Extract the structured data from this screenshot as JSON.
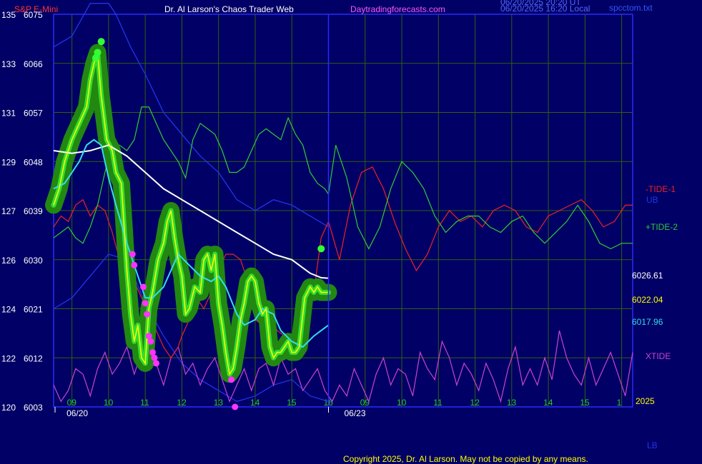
{
  "header": {
    "symbol": "S&P E-Mini",
    "title": "Dr. Al Larson's Chaos Trader Web",
    "site": "Daytradingforecasts.com",
    "stamp1": "06/20/2025 20:20 UT",
    "stamp2": "06/20/2025 16:20 Local",
    "filename": "spcctom.txt"
  },
  "colors": {
    "background": "#000066",
    "frame": "#2a2aff",
    "grid": "#33600a",
    "symbol": "#ff3333",
    "title": "#ffffff",
    "site": "#ff55ff",
    "price": "#ffff00",
    "ma_slow": "#ffffff",
    "ma_fast": "#33ddee",
    "tide1": "#ee2222",
    "tide2": "#33cc33",
    "xtide": "#cc44cc",
    "band": "#2233ee",
    "halo": "#228811",
    "pivot": "#ff33ff"
  },
  "right_labels": {
    "tide1": "-TIDE-1",
    "ub": "UB",
    "tide2": "+TIDE-2",
    "v1": "6026.61",
    "v2": "6022.04",
    "v3": "6017.96",
    "xtide": "XTIDE",
    "year": "2025",
    "lb": "LB"
  },
  "footer": {
    "copyright": "Copyright 2025, Dr. Al Larson. May not be copied by any means."
  },
  "chart_data": {
    "type": "line",
    "title": "Dr. Al Larson's Chaos Trader Web",
    "y_left_labels": [
      {
        "a": "135",
        "b": "6075"
      },
      {
        "a": "133",
        "b": "6066"
      },
      {
        "a": "131",
        "b": "6057"
      },
      {
        "a": "129",
        "b": "6048"
      },
      {
        "a": "127",
        "b": "6039"
      },
      {
        "a": "126",
        "b": "6030"
      },
      {
        "a": "124",
        "b": "6021"
      },
      {
        "a": "122",
        "b": "6012"
      },
      {
        "a": "120",
        "b": "6003"
      }
    ],
    "ylim": [
      6003,
      6075
    ],
    "x_tick_labels": [
      "09",
      "10",
      "11",
      "12",
      "13",
      "14",
      "15",
      "16",
      "09",
      "10",
      "11",
      "12",
      "13",
      "14",
      "15",
      "1"
    ],
    "x_date_labels": [
      "06/20",
      "06/23"
    ],
    "x_domain": [
      8.5,
      24.3
    ],
    "now_line_hour": 16.0,
    "series": [
      {
        "name": "price",
        "x": [
          8.5,
          8.65,
          8.8,
          9.0,
          9.2,
          9.4,
          9.5,
          9.6,
          9.7,
          9.8,
          9.95,
          10.1,
          10.2,
          10.35,
          10.5,
          10.6,
          10.7,
          10.8,
          10.9,
          11.0,
          11.1,
          11.2,
          11.35,
          11.5,
          11.6,
          11.7,
          11.8,
          11.9,
          12.0,
          12.1,
          12.2,
          12.35,
          12.5,
          12.6,
          12.7,
          12.8,
          12.9,
          13.0,
          13.1,
          13.2,
          13.3,
          13.4,
          13.5,
          13.6,
          13.7,
          13.8,
          13.9,
          14.0,
          14.1,
          14.2,
          14.3,
          14.4,
          14.5,
          14.6,
          14.7,
          14.8,
          14.9,
          15.0,
          15.1,
          15.2,
          15.35,
          15.5,
          15.6,
          15.7,
          15.8,
          15.9,
          16.0
        ],
        "y": [
          6040,
          6043,
          6048,
          6052,
          6055,
          6058,
          6063,
          6066,
          6068,
          6060,
          6052,
          6050,
          6046,
          6044,
          6028,
          6020,
          6015,
          6018,
          6012,
          6011,
          6021,
          6024,
          6030,
          6033,
          6037,
          6039,
          6034,
          6030,
          6027,
          6020,
          6021,
          6025,
          6024,
          6030,
          6031,
          6028,
          6031,
          6022,
          6018,
          6013,
          6009,
          6010,
          6014,
          6019,
          6022,
          6026,
          6027,
          6026,
          6022,
          6020,
          6021,
          6014,
          6012,
          6013,
          6013,
          6014,
          6015,
          6013,
          6013,
          6014,
          6023,
          6025,
          6024,
          6025,
          6024,
          6024,
          6024
        ]
      },
      {
        "name": "ma_fast",
        "x": [
          8.5,
          8.8,
          9.2,
          9.4,
          9.6,
          9.8,
          10.0,
          10.2,
          10.5,
          10.8,
          11.0,
          11.2,
          11.5,
          11.7,
          11.9,
          12.2,
          12.5,
          12.8,
          13.0,
          13.2,
          13.5,
          13.7,
          14.0,
          14.2,
          14.5,
          14.7,
          15.0,
          15.3,
          15.6,
          15.8,
          16.0
        ],
        "y": [
          6043,
          6044,
          6048,
          6051,
          6052,
          6051,
          6045,
          6040,
          6033,
          6027,
          6023,
          6023,
          6025,
          6028,
          6031,
          6029,
          6027,
          6026,
          6027,
          6025,
          6020,
          6018,
          6019,
          6021,
          6020,
          6017,
          6015,
          6014,
          6016,
          6017,
          6018
        ]
      },
      {
        "name": "ma_slow",
        "x": [
          8.5,
          9.0,
          9.5,
          10.0,
          10.5,
          11.0,
          11.5,
          12.0,
          12.5,
          13.0,
          13.5,
          14.0,
          14.5,
          15.0,
          15.5,
          15.8,
          16.0
        ],
        "y": [
          6050,
          6049.5,
          6050,
          6051,
          6049,
          6046,
          6043,
          6041,
          6039,
          6037,
          6035,
          6033,
          6031,
          6030,
          6027.5,
          6026.7,
          6026.6
        ]
      },
      {
        "name": "tide1",
        "x": [
          8.5,
          8.7,
          8.9,
          9.1,
          9.3,
          9.5,
          9.7,
          9.9,
          10.1,
          10.3,
          10.5,
          10.7,
          10.9,
          11.1,
          11.3,
          11.5,
          11.7,
          11.9,
          12.0,
          12.2,
          12.4,
          12.6,
          12.8,
          13.0,
          13.2,
          13.4,
          13.6,
          13.8,
          14.0,
          14.2,
          14.4,
          14.6,
          14.8,
          15.0,
          15.2,
          15.4,
          15.6,
          15.8,
          16.0,
          16.3,
          16.6,
          16.9,
          17.2,
          17.5,
          17.8,
          18.1,
          18.4,
          18.7,
          19.0,
          19.3,
          19.6,
          19.9,
          20.2,
          20.5,
          20.8,
          21.1,
          21.4,
          21.7,
          22.0,
          22.3,
          22.6,
          22.9,
          23.2,
          23.5,
          23.8,
          24.1,
          24.3
        ],
        "y": [
          6036,
          6038,
          6037,
          6040,
          6041,
          6038,
          6040,
          6039,
          6035,
          6030,
          6028,
          6026,
          6023,
          6021,
          6017,
          6014,
          6012,
          6014,
          6016,
          6019,
          6023,
          6021,
          6024,
          6028,
          6031,
          6031,
          6030,
          6026,
          6019,
          6018,
          6020,
          6017,
          6016,
          6015,
          6016,
          6018,
          6024,
          6034,
          6037,
          6030,
          6040,
          6046,
          6047,
          6043,
          6037,
          6032,
          6028,
          6031,
          6036,
          6039,
          6037,
          6038,
          6036,
          6039,
          6040,
          6039,
          6036,
          6035,
          6038,
          6039,
          6040,
          6041,
          6039,
          6036,
          6037,
          6040,
          6040
        ]
      },
      {
        "name": "tide2",
        "x": [
          8.5,
          8.7,
          8.9,
          9.1,
          9.3,
          9.5,
          9.7,
          9.9,
          10.1,
          10.3,
          10.5,
          10.7,
          10.9,
          11.1,
          11.3,
          11.5,
          11.7,
          11.9,
          12.1,
          12.3,
          12.5,
          12.7,
          12.9,
          13.1,
          13.3,
          13.5,
          13.7,
          13.9,
          14.1,
          14.3,
          14.5,
          14.7,
          14.9,
          15.1,
          15.3,
          15.5,
          15.7,
          15.9,
          16.0,
          16.2,
          16.5,
          16.8,
          17.1,
          17.4,
          17.7,
          18.0,
          18.3,
          18.6,
          18.9,
          19.2,
          19.5,
          19.8,
          20.1,
          20.4,
          20.7,
          21.0,
          21.3,
          21.6,
          21.9,
          22.2,
          22.5,
          22.8,
          23.1,
          23.4,
          23.7,
          24.0,
          24.3
        ],
        "y": [
          6034,
          6035,
          6036,
          6034,
          6033,
          6036,
          6040,
          6046,
          6051,
          6051,
          6050,
          6052,
          6058,
          6058,
          6055,
          6052,
          6050,
          6048,
          6045,
          6052,
          6055,
          6054,
          6053,
          6050,
          6046,
          6046,
          6047,
          6050,
          6053,
          6054,
          6053,
          6052,
          6056,
          6053,
          6051,
          6046,
          6044,
          6043,
          6042,
          6051,
          6045,
          6036,
          6032,
          6036,
          6043,
          6048,
          6046,
          6043,
          6038,
          6035,
          6037,
          6038,
          6038,
          6036,
          6035,
          6037,
          6038,
          6035,
          6033,
          6035,
          6037,
          6040,
          6037,
          6033,
          6032,
          6033,
          6033
        ]
      },
      {
        "name": "xtide",
        "x": [
          8.5,
          8.7,
          8.9,
          9.1,
          9.3,
          9.5,
          9.7,
          9.9,
          10.1,
          10.3,
          10.5,
          10.7,
          10.9,
          11.1,
          11.3,
          11.5,
          11.7,
          11.9,
          12.1,
          12.3,
          12.5,
          12.7,
          12.9,
          13.1,
          13.3,
          13.5,
          13.7,
          13.9,
          14.1,
          14.3,
          14.5,
          14.7,
          14.9,
          15.1,
          15.3,
          15.5,
          15.7,
          15.9,
          16.1,
          16.3,
          16.5,
          16.7,
          16.9,
          17.1,
          17.3,
          17.5,
          17.7,
          17.9,
          18.1,
          18.3,
          18.5,
          18.7,
          18.9,
          19.1,
          19.3,
          19.5,
          19.7,
          19.9,
          20.1,
          20.3,
          20.5,
          20.7,
          20.9,
          21.1,
          21.3,
          21.5,
          21.7,
          21.9,
          22.1,
          22.3,
          22.5,
          22.7,
          22.9,
          23.1,
          23.3,
          23.5,
          23.7,
          23.9,
          24.1,
          24.3
        ],
        "y": [
          6007,
          6004,
          6006,
          6010,
          6009,
          6005,
          6010,
          6013,
          6009,
          6011,
          6014,
          6009,
          6013,
          6010,
          6011,
          6007,
          6012,
          6014,
          6009,
          6011,
          6007,
          6010,
          6012,
          6008,
          6004,
          6007,
          6010,
          6006,
          6010,
          6011,
          6007,
          6012,
          6009,
          6010,
          6006,
          6008,
          6010,
          6006,
          6004,
          6007,
          6005,
          6010,
          6007,
          6004,
          6009,
          6012,
          6007,
          6010,
          6009,
          6005,
          6013,
          6010,
          6008,
          6015,
          6012,
          6007,
          6011,
          6009,
          6006,
          6011,
          6008,
          6004,
          6010,
          6014,
          6007,
          6010,
          6007,
          6012,
          6008,
          6017,
          6012,
          6009,
          6007,
          6012,
          6007,
          6010,
          6013,
          6009,
          6005,
          6013
        ]
      },
      {
        "name": "band_ub",
        "x": [
          8.5,
          9.0,
          9.5,
          10.0,
          10.2,
          10.6,
          11.0,
          11.5,
          12.0,
          12.5,
          13.0,
          13.3,
          13.5,
          14.0,
          14.5,
          15.0,
          15.5,
          16.0
        ],
        "y": [
          6069,
          6071,
          6077,
          6077,
          6075,
          6069,
          6064,
          6057,
          6053,
          6049,
          6046,
          6043,
          6041,
          6039,
          6041,
          6040,
          6038,
          6036
        ]
      },
      {
        "name": "band_lb",
        "x": [
          8.5,
          9.0,
          9.5,
          10.0,
          10.5,
          11.0,
          11.5,
          12.0,
          12.5,
          13.0,
          13.5,
          14.0,
          14.5,
          15.0,
          15.5,
          16.0
        ],
        "y": [
          6021,
          6023,
          6027,
          6031,
          6030,
          6022,
          6016,
          6011,
          6008,
          6006,
          6004,
          6005,
          6007,
          6008,
          6005,
          6004
        ]
      },
      {
        "name": "pivots",
        "x": [
          10.65,
          10.7,
          10.95,
          11.0,
          11.05,
          11.1,
          11.15,
          11.2,
          11.25,
          11.3,
          13.35,
          13.45
        ],
        "y": [
          6031,
          6029,
          6025,
          6022,
          6020,
          6016,
          6015,
          6013,
          6012,
          6011,
          6008,
          6003
        ]
      },
      {
        "name": "peak_dots",
        "x": [
          9.65,
          9.7,
          9.8,
          15.8
        ],
        "y": [
          6067,
          6068,
          6070,
          6032
        ]
      }
    ]
  }
}
